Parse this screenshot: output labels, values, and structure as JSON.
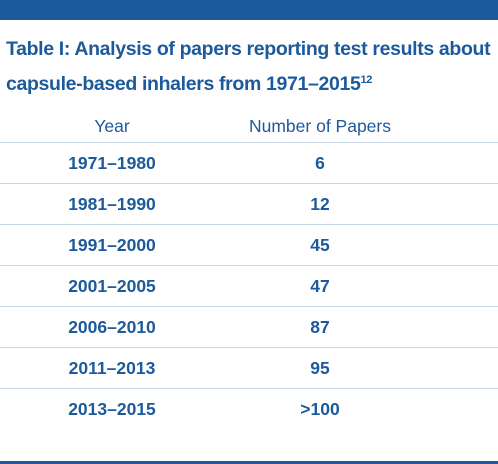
{
  "caption": {
    "text": "Table I: Analysis of papers reporting test results about capsule-based inhalers from 1971–2015",
    "superscript": "12"
  },
  "table": {
    "headers": [
      "Year",
      "Number of Papers"
    ],
    "rows": [
      {
        "year": "1971–1980",
        "count": "6"
      },
      {
        "year": "1981–1990",
        "count": "12"
      },
      {
        "year": "1991–2000",
        "count": "45"
      },
      {
        "year": "2001–2005",
        "count": "47"
      },
      {
        "year": "2006–2010",
        "count": "87"
      },
      {
        "year": "2011–2013",
        "count": "95"
      },
      {
        "year": "2013–2015",
        "count": ">100"
      }
    ]
  },
  "colors": {
    "accent": "#1d5a9b",
    "rule": "#c9d7e6"
  }
}
